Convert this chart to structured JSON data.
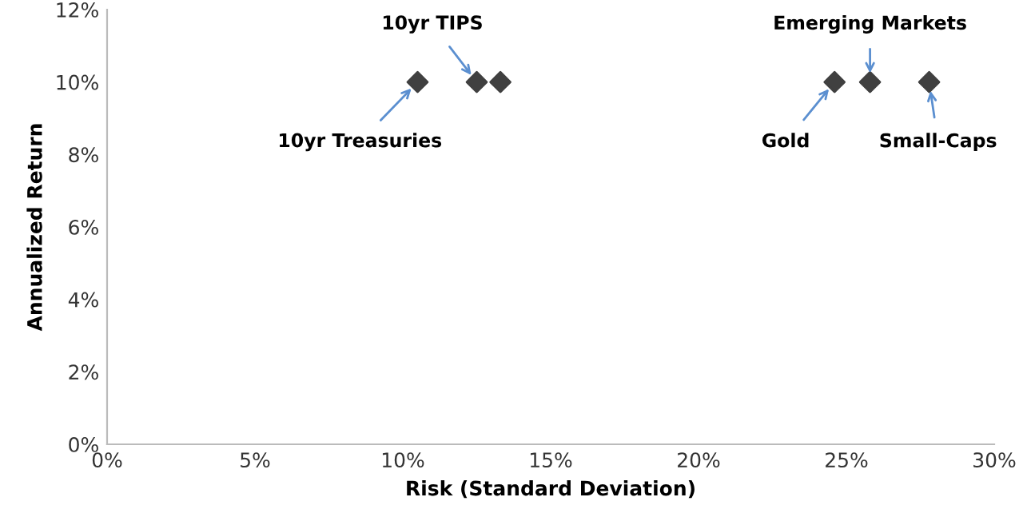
{
  "chart_data": {
    "type": "scatter",
    "xlabel": "Risk (Standard Deviation)",
    "ylabel": "Annualized Return",
    "x": [
      10.5,
      12.5,
      13.3,
      24.6,
      25.8,
      27.8
    ],
    "values": [
      10,
      10,
      10,
      10,
      10,
      10
    ],
    "color": "#404040",
    "marker": "diamond",
    "grid": false,
    "xlim": [
      0,
      30
    ],
    "xticks": [
      {
        "value": 0,
        "label": "0%"
      },
      {
        "value": 5,
        "label": "5%"
      },
      {
        "value": 10,
        "label": "10%"
      },
      {
        "value": 15,
        "label": "15%"
      },
      {
        "value": 20,
        "label": "20%"
      },
      {
        "value": 25,
        "label": "25%"
      },
      {
        "value": 30,
        "label": "30%"
      }
    ],
    "ylim": [
      0,
      12
    ],
    "yticks": [
      {
        "value": 0,
        "label": "0%"
      },
      {
        "value": 2,
        "label": "2%"
      },
      {
        "value": 4,
        "label": "4%"
      },
      {
        "value": 6,
        "label": "6%"
      },
      {
        "value": 8,
        "label": "8%"
      },
      {
        "value": 10,
        "label": "10%"
      },
      {
        "value": 12,
        "label": "12%"
      }
    ],
    "annotations": [
      {
        "text": "10yr Treasuries",
        "x": 10.5,
        "y": 10
      },
      {
        "text": "10yr TIPS",
        "x": 12.5,
        "y": 10
      },
      {
        "text": "Gold",
        "x": 24.6,
        "y": 10
      },
      {
        "text": "Emerging Markets",
        "x": 25.8,
        "y": 10
      },
      {
        "text": "Small-Caps",
        "x": 27.8,
        "y": 10
      }
    ]
  }
}
